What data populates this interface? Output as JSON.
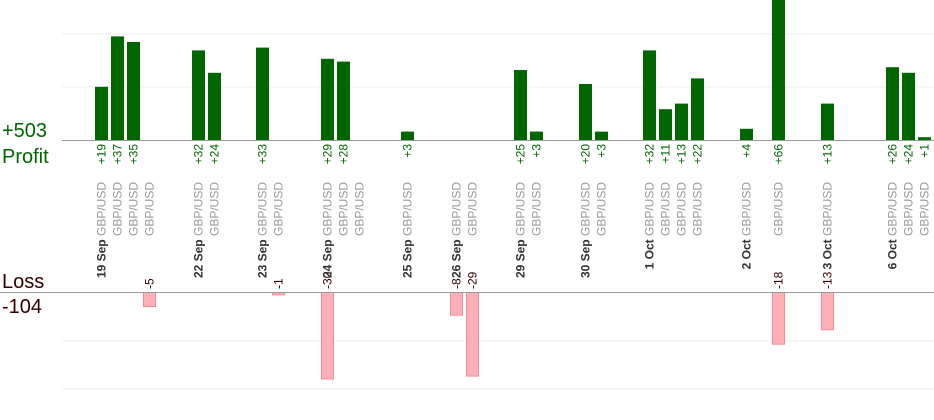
{
  "summary": {
    "profit_total": "+503",
    "profit_label": "Profit",
    "loss_label": "Loss",
    "loss_total": "-104"
  },
  "colors": {
    "profit_bar": "#006600",
    "profit_text": "#006600",
    "loss_bar": "#ffb0b6",
    "loss_bar_edge": "#f08c94",
    "loss_text": "#330000",
    "axis": "#999999",
    "grid": "#eeeeee",
    "label_date": "#333333",
    "label_pair": "#999999"
  },
  "chart_data": {
    "type": "bar",
    "title": "",
    "xlabel": "",
    "ylabel": "",
    "ylim_profit": [
      0,
      50
    ],
    "ylim_loss": [
      0,
      40
    ],
    "grid": true,
    "categories": [
      {
        "date": "19 Sep",
        "pair": "GBP/USD"
      },
      {
        "date": "",
        "pair": "GBP/USD"
      },
      {
        "date": "",
        "pair": "GBP/USD"
      },
      {
        "date": "",
        "pair": "GBP/USD"
      },
      {
        "date": "22 Sep",
        "pair": "GBP/USD"
      },
      {
        "date": "",
        "pair": "GBP/USD"
      },
      {
        "date": "23 Sep",
        "pair": "GBP/USD"
      },
      {
        "date": "",
        "pair": "GBP/USD"
      },
      {
        "date": "24 Sep",
        "pair": "GBP/USD"
      },
      {
        "date": "",
        "pair": "GBP/USD"
      },
      {
        "date": "",
        "pair": "GBP/USD"
      },
      {
        "date": "25 Sep",
        "pair": "GBP/USD"
      },
      {
        "date": "26 Sep",
        "pair": "GBP/USD"
      },
      {
        "date": "",
        "pair": "GBP/USD"
      },
      {
        "date": "29 Sep",
        "pair": "GBP/USD"
      },
      {
        "date": "",
        "pair": "GBP/USD"
      },
      {
        "date": "30 Sep",
        "pair": "GBP/USD"
      },
      {
        "date": "",
        "pair": "GBP/USD"
      },
      {
        "date": "1 Oct",
        "pair": "GBP/USD"
      },
      {
        "date": "",
        "pair": "GBP/USD"
      },
      {
        "date": "",
        "pair": "GBP/USD"
      },
      {
        "date": "",
        "pair": "GBP/USD"
      },
      {
        "date": "2 Oct",
        "pair": "GBP/USD"
      },
      {
        "date": "",
        "pair": "GBP/USD"
      },
      {
        "date": "3 Oct",
        "pair": "GBP/USD"
      },
      {
        "date": "6 Oct",
        "pair": "GBP/USD"
      },
      {
        "date": "",
        "pair": "GBP/USD"
      },
      {
        "date": "",
        "pair": "GBP/USD"
      }
    ],
    "series": [
      {
        "name": "Profit",
        "labels": [
          "+19",
          "+37",
          "+35",
          null,
          "+32",
          "+24",
          "+33",
          null,
          "+29",
          "+28",
          null,
          "+3",
          null,
          null,
          "+25",
          "+3",
          "+20",
          "+3",
          "+32",
          "+11",
          "+13",
          "+22",
          "+4",
          "+66",
          "+13",
          "+26",
          "+24",
          "+1"
        ],
        "values": [
          19,
          37,
          35,
          null,
          32,
          24,
          33,
          null,
          29,
          28,
          null,
          3,
          null,
          null,
          25,
          3,
          20,
          3,
          32,
          11,
          13,
          22,
          4,
          66,
          13,
          26,
          24,
          1
        ]
      },
      {
        "name": "Loss",
        "labels": [
          null,
          null,
          null,
          "-5",
          null,
          null,
          null,
          "-1",
          "-30",
          null,
          null,
          null,
          "-8",
          "-29",
          null,
          null,
          null,
          null,
          null,
          null,
          null,
          null,
          null,
          "-18",
          "-13",
          null,
          null,
          null
        ],
        "values": [
          null,
          null,
          null,
          -5,
          null,
          null,
          null,
          -1,
          -30,
          null,
          null,
          null,
          -8,
          -29,
          null,
          null,
          null,
          null,
          null,
          null,
          null,
          null,
          null,
          -18,
          -13,
          null,
          null,
          null
        ]
      }
    ]
  }
}
